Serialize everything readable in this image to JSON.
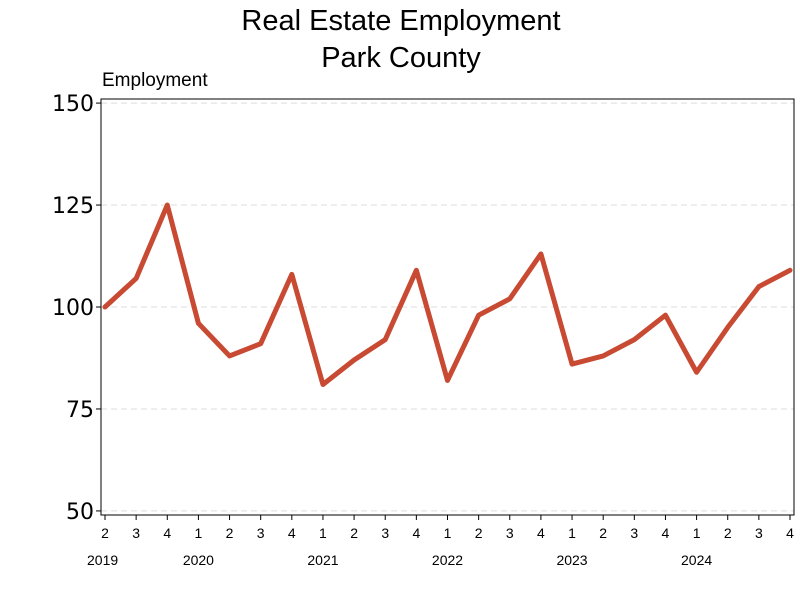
{
  "chart_data": {
    "type": "line",
    "title_lines": [
      "Real Estate Employment",
      "Park County"
    ],
    "ylabel": "Employment",
    "xlabel": "",
    "ylim": [
      49,
      151
    ],
    "yticks": [
      50,
      75,
      100,
      125,
      150
    ],
    "grid": "horizontal-dashed",
    "legend": "none",
    "line_color": "#c84a32",
    "grid_color": "#dddddd",
    "axis_color": "#000000",
    "categories": [
      {
        "quarter": "2",
        "year": "2019"
      },
      {
        "quarter": "3",
        "year": "2019"
      },
      {
        "quarter": "4",
        "year": "2019"
      },
      {
        "quarter": "1",
        "year": "2020"
      },
      {
        "quarter": "2",
        "year": "2020"
      },
      {
        "quarter": "3",
        "year": "2020"
      },
      {
        "quarter": "4",
        "year": "2020"
      },
      {
        "quarter": "1",
        "year": "2021"
      },
      {
        "quarter": "2",
        "year": "2021"
      },
      {
        "quarter": "3",
        "year": "2021"
      },
      {
        "quarter": "4",
        "year": "2021"
      },
      {
        "quarter": "1",
        "year": "2022"
      },
      {
        "quarter": "2",
        "year": "2022"
      },
      {
        "quarter": "3",
        "year": "2022"
      },
      {
        "quarter": "4",
        "year": "2022"
      },
      {
        "quarter": "1",
        "year": "2023"
      },
      {
        "quarter": "2",
        "year": "2023"
      },
      {
        "quarter": "3",
        "year": "2023"
      },
      {
        "quarter": "4",
        "year": "2023"
      },
      {
        "quarter": "1",
        "year": "2024"
      },
      {
        "quarter": "2",
        "year": "2024"
      },
      {
        "quarter": "3",
        "year": "2024"
      },
      {
        "quarter": "4",
        "year": "2024"
      }
    ],
    "year_labels": [
      "2019",
      "2020",
      "2021",
      "2022",
      "2023",
      "2024"
    ],
    "values": [
      100,
      107,
      125,
      96,
      88,
      91,
      108,
      81,
      87,
      92,
      109,
      82,
      98,
      102,
      113,
      86,
      88,
      92,
      98,
      84,
      95,
      105,
      109
    ]
  }
}
